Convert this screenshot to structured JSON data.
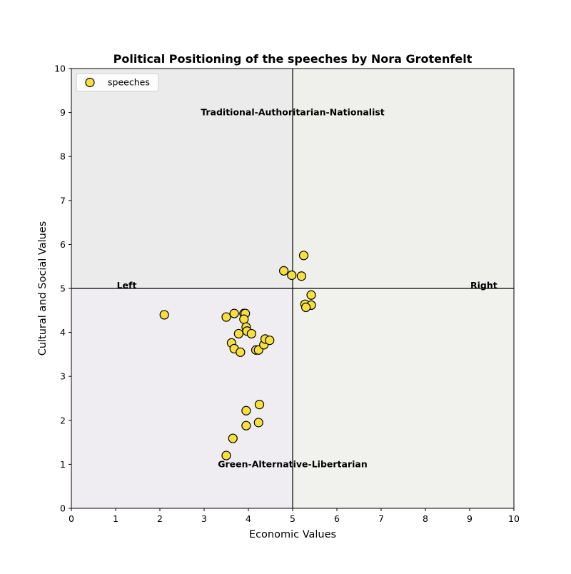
{
  "chart_data": {
    "type": "scatter",
    "title": "Political Positioning of the speeches by Nora Grotenfelt",
    "xlabel": "Economic Values",
    "ylabel": "Cultural and Social Values",
    "xlim": [
      0,
      10
    ],
    "ylim": [
      0,
      10
    ],
    "xticks": [
      "0",
      "1",
      "2",
      "3",
      "4",
      "5",
      "6",
      "7",
      "8",
      "9",
      "10"
    ],
    "yticks": [
      "0",
      "1",
      "2",
      "3",
      "4",
      "5",
      "6",
      "7",
      "8",
      "9",
      "10"
    ],
    "grid": false,
    "legend": {
      "placement": "top-left",
      "entries": [
        "speeches"
      ]
    },
    "colors": {
      "point_fill": "#f7df3e",
      "point_edge": "#000000",
      "quadrant_top_left": "#ebebeb",
      "quadrant_top_right": "#eff0eb",
      "quadrant_bottom_left": "#efedf2",
      "quadrant_bottom_right": "#f1f2ed"
    },
    "quadrant_labels": {
      "top": "Traditional-Authoritarian-Nationalist",
      "bottom": "Green-Alternative-Libertarian",
      "left": "Left",
      "right": "Right"
    },
    "series": [
      {
        "name": "speeches",
        "points": [
          {
            "x": 2.1,
            "y": 4.4
          },
          {
            "x": 3.5,
            "y": 4.35
          },
          {
            "x": 3.68,
            "y": 4.43
          },
          {
            "x": 3.9,
            "y": 4.43
          },
          {
            "x": 3.93,
            "y": 4.43
          },
          {
            "x": 3.9,
            "y": 4.3
          },
          {
            "x": 3.95,
            "y": 4.12
          },
          {
            "x": 3.97,
            "y": 4.03
          },
          {
            "x": 3.78,
            "y": 3.97
          },
          {
            "x": 4.07,
            "y": 3.97
          },
          {
            "x": 3.62,
            "y": 3.76
          },
          {
            "x": 3.68,
            "y": 3.63
          },
          {
            "x": 3.82,
            "y": 3.55
          },
          {
            "x": 4.17,
            "y": 3.6
          },
          {
            "x": 4.23,
            "y": 3.6
          },
          {
            "x": 4.35,
            "y": 3.72
          },
          {
            "x": 4.38,
            "y": 3.85
          },
          {
            "x": 4.48,
            "y": 3.82
          },
          {
            "x": 4.8,
            "y": 5.4
          },
          {
            "x": 4.98,
            "y": 5.3
          },
          {
            "x": 5.2,
            "y": 5.28
          },
          {
            "x": 5.25,
            "y": 5.75
          },
          {
            "x": 5.42,
            "y": 4.85
          },
          {
            "x": 5.28,
            "y": 4.64
          },
          {
            "x": 5.42,
            "y": 4.62
          },
          {
            "x": 5.3,
            "y": 4.57
          },
          {
            "x": 4.25,
            "y": 2.36
          },
          {
            "x": 3.95,
            "y": 2.22
          },
          {
            "x": 4.23,
            "y": 1.95
          },
          {
            "x": 3.95,
            "y": 1.88
          },
          {
            "x": 3.65,
            "y": 1.59
          },
          {
            "x": 3.5,
            "y": 1.2
          }
        ]
      }
    ]
  }
}
